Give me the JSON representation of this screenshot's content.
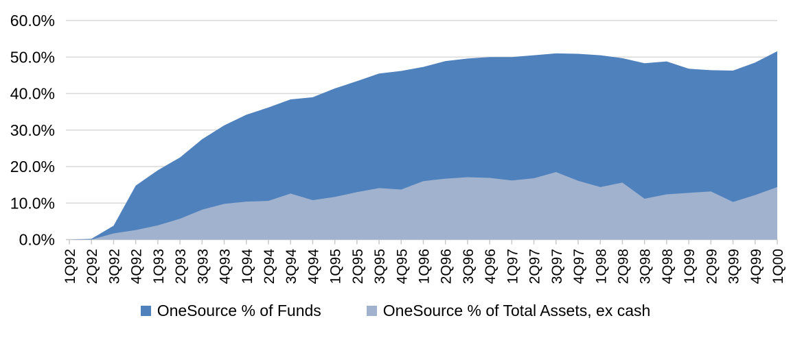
{
  "chart_data": {
    "type": "area",
    "title": "",
    "categories": [
      "1Q92",
      "2Q92",
      "3Q92",
      "4Q92",
      "1Q93",
      "2Q93",
      "3Q93",
      "4Q93",
      "1Q94",
      "2Q94",
      "3Q94",
      "4Q94",
      "1Q95",
      "2Q95",
      "3Q95",
      "4Q95",
      "1Q96",
      "2Q96",
      "3Q96",
      "4Q96",
      "1Q97",
      "2Q97",
      "3Q97",
      "4Q97",
      "1Q98",
      "2Q98",
      "3Q98",
      "4Q98",
      "1Q99",
      "2Q99",
      "3Q99",
      "4Q99",
      "1Q00"
    ],
    "series": [
      {
        "name": "OneSource % of Funds",
        "color": "#4F81BD",
        "values": [
          0.0,
          0.2,
          3.8,
          14.8,
          19.0,
          22.5,
          27.5,
          31.3,
          34.2,
          36.2,
          38.4,
          39.0,
          41.4,
          43.4,
          45.5,
          46.2,
          47.3,
          48.9,
          49.6,
          50.0,
          50.0,
          50.5,
          51.0,
          50.9,
          50.5,
          49.7,
          48.3,
          48.8,
          46.8,
          46.4,
          46.3,
          48.5,
          51.6
        ]
      },
      {
        "name": "OneSource % of Total Assets, ex cash",
        "color": "#A0B2CD",
        "values": [
          0.0,
          0.0,
          1.7,
          2.6,
          3.9,
          5.7,
          8.2,
          9.8,
          10.4,
          10.6,
          12.6,
          10.8,
          11.7,
          13.0,
          14.1,
          13.7,
          16.0,
          16.7,
          17.1,
          16.9,
          16.2,
          16.8,
          18.5,
          16.1,
          14.4,
          15.6,
          11.2,
          12.4,
          12.8,
          13.2,
          10.3,
          12.2,
          14.4
        ]
      }
    ],
    "xlabel": "",
    "ylabel": "",
    "ylim": [
      0,
      60
    ],
    "yticks": [
      0,
      10,
      20,
      30,
      40,
      50,
      60
    ],
    "ytick_labels": [
      "0.0%",
      "10.0%",
      "20.0%",
      "30.0%",
      "40.0%",
      "50.0%",
      "60.0%"
    ],
    "grid": true,
    "grid_color": "#D9D9D9",
    "axis_color": "#C9C9C9",
    "legend_position": "bottom"
  }
}
